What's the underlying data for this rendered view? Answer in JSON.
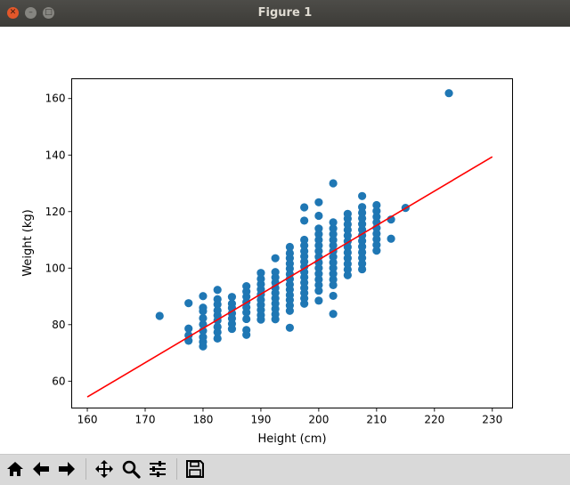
{
  "window": {
    "title": "Figure 1"
  },
  "toolbar": {
    "buttons": [
      {
        "name": "home-icon"
      },
      {
        "name": "back-arrow-icon"
      },
      {
        "name": "forward-arrow-icon"
      },
      {
        "name": "pan-icon"
      },
      {
        "name": "zoom-icon"
      },
      {
        "name": "configure-subplots-icon"
      },
      {
        "name": "save-icon"
      }
    ]
  },
  "chart_data": {
    "type": "scatter",
    "title": "",
    "xlabel": "Height (cm)",
    "ylabel": "Weight (kg)",
    "xlim": [
      157.3,
      233.5
    ],
    "ylim": [
      50.5,
      167
    ],
    "xticks": [
      "160",
      "170",
      "180",
      "190",
      "200",
      "210",
      "220",
      "230"
    ],
    "yticks": [
      "60",
      "80",
      "100",
      "120",
      "140",
      "160"
    ],
    "grid": false,
    "colors": {
      "points": "#1f77b4",
      "line": "#ff0000"
    },
    "points": [
      [
        172.5,
        83.1
      ],
      [
        177.5,
        74.3
      ],
      [
        177.5,
        76.2
      ],
      [
        177.5,
        78.6
      ],
      [
        177.5,
        87.6
      ],
      [
        180,
        72.3
      ],
      [
        180,
        73.9
      ],
      [
        180,
        75.6
      ],
      [
        180,
        77.8
      ],
      [
        180,
        80.1
      ],
      [
        180,
        82.3
      ],
      [
        180,
        84.8
      ],
      [
        180,
        86.0
      ],
      [
        180,
        90.1
      ],
      [
        182.5,
        75.1
      ],
      [
        182.5,
        77.3
      ],
      [
        182.5,
        79.2
      ],
      [
        182.5,
        81.5
      ],
      [
        182.5,
        83.3
      ],
      [
        182.5,
        85.0
      ],
      [
        182.5,
        87.2
      ],
      [
        182.5,
        89.0
      ],
      [
        182.5,
        92.3
      ],
      [
        185,
        78.5
      ],
      [
        185,
        80.3
      ],
      [
        185,
        82.2
      ],
      [
        185,
        84.0
      ],
      [
        185,
        85.9
      ],
      [
        185,
        87.4
      ],
      [
        185,
        89.8
      ],
      [
        187.5,
        76.4
      ],
      [
        187.5,
        78.1
      ],
      [
        187.5,
        82.0
      ],
      [
        187.5,
        84.3
      ],
      [
        187.5,
        86.1
      ],
      [
        187.5,
        88.0
      ],
      [
        187.5,
        89.9
      ],
      [
        187.5,
        91.7
      ],
      [
        187.5,
        93.6
      ],
      [
        190,
        81.8
      ],
      [
        190,
        83.4
      ],
      [
        190,
        85.2
      ],
      [
        190,
        87.0
      ],
      [
        190,
        88.8
      ],
      [
        190,
        90.7
      ],
      [
        190,
        92.5
      ],
      [
        190,
        94.3
      ],
      [
        190,
        96.2
      ],
      [
        190,
        98.3
      ],
      [
        192.5,
        81.9
      ],
      [
        192.5,
        83.7
      ],
      [
        192.5,
        85.6
      ],
      [
        192.5,
        87.5
      ],
      [
        192.5,
        89.3
      ],
      [
        192.5,
        91.2
      ],
      [
        192.5,
        93.0
      ],
      [
        192.5,
        94.9
      ],
      [
        192.5,
        96.7
      ],
      [
        192.5,
        98.6
      ],
      [
        192.5,
        103.5
      ],
      [
        195,
        78.9
      ],
      [
        195,
        84.9
      ],
      [
        195,
        86.8
      ],
      [
        195,
        88.7
      ],
      [
        195,
        90.5
      ],
      [
        195,
        92.4
      ],
      [
        195,
        94.2
      ],
      [
        195,
        96.1
      ],
      [
        195,
        97.9
      ],
      [
        195,
        99.8
      ],
      [
        195,
        101.6
      ],
      [
        195,
        103.5
      ],
      [
        195,
        105.3
      ],
      [
        195,
        107.5
      ],
      [
        197.5,
        87.4
      ],
      [
        197.5,
        89.3
      ],
      [
        197.5,
        91.2
      ],
      [
        197.5,
        93.0
      ],
      [
        197.5,
        94.9
      ],
      [
        197.5,
        96.8
      ],
      [
        197.5,
        98.6
      ],
      [
        197.5,
        100.5
      ],
      [
        197.5,
        102.3
      ],
      [
        197.5,
        104.2
      ],
      [
        197.5,
        106.0
      ],
      [
        197.5,
        108.0
      ],
      [
        197.5,
        110.0
      ],
      [
        197.5,
        116.8
      ],
      [
        197.5,
        121.5
      ],
      [
        200,
        88.5
      ],
      [
        200,
        92.0
      ],
      [
        200,
        94.0
      ],
      [
        200,
        96.0
      ],
      [
        200,
        98.0
      ],
      [
        200,
        100.0
      ],
      [
        200,
        102.0
      ],
      [
        200,
        104.0
      ],
      [
        200,
        106.0
      ],
      [
        200,
        108.0
      ],
      [
        200,
        110.0
      ],
      [
        200,
        112.0
      ],
      [
        200,
        114.0
      ],
      [
        200,
        118.5
      ],
      [
        200,
        123.3
      ],
      [
        202.5,
        83.8
      ],
      [
        202.5,
        90.2
      ],
      [
        202.5,
        94.0
      ],
      [
        202.5,
        96.0
      ],
      [
        202.5,
        98.0
      ],
      [
        202.5,
        100.0
      ],
      [
        202.5,
        102.0
      ],
      [
        202.5,
        104.0
      ],
      [
        202.5,
        106.0
      ],
      [
        202.5,
        108.0
      ],
      [
        202.5,
        110.0
      ],
      [
        202.5,
        112.0
      ],
      [
        202.5,
        114.0
      ],
      [
        202.5,
        116.2
      ],
      [
        202.5,
        130.0
      ],
      [
        205,
        97.5
      ],
      [
        205,
        99.5
      ],
      [
        205,
        101.5
      ],
      [
        205,
        103.5
      ],
      [
        205,
        105.5
      ],
      [
        205,
        107.5
      ],
      [
        205,
        109.5
      ],
      [
        205,
        111.5
      ],
      [
        205,
        113.5
      ],
      [
        205,
        115.5
      ],
      [
        205,
        117.5
      ],
      [
        205,
        119.2
      ],
      [
        207.5,
        99.6
      ],
      [
        207.5,
        101.6
      ],
      [
        207.5,
        103.6
      ],
      [
        207.5,
        105.6
      ],
      [
        207.5,
        107.6
      ],
      [
        207.5,
        109.6
      ],
      [
        207.5,
        111.6
      ],
      [
        207.5,
        113.6
      ],
      [
        207.5,
        115.6
      ],
      [
        207.5,
        117.6
      ],
      [
        207.5,
        119.6
      ],
      [
        207.5,
        121.6
      ],
      [
        207.5,
        125.5
      ],
      [
        210,
        106.2
      ],
      [
        210,
        108.2
      ],
      [
        210,
        110.2
      ],
      [
        210,
        112.2
      ],
      [
        210,
        114.2
      ],
      [
        210,
        116.2
      ],
      [
        210,
        118.2
      ],
      [
        210,
        120.2
      ],
      [
        210,
        122.3
      ],
      [
        212.5,
        110.4
      ],
      [
        212.5,
        117.2
      ],
      [
        215,
        121.3
      ],
      [
        222.5,
        161.9
      ]
    ],
    "line": {
      "x": [
        160,
        230
      ],
      "y": [
        54.4,
        139.4
      ]
    }
  }
}
